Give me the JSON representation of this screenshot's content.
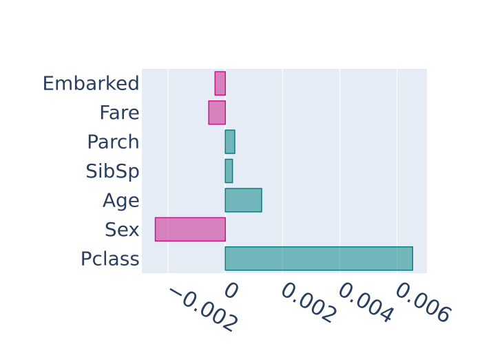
{
  "chart_data": {
    "type": "bar",
    "orientation": "horizontal",
    "categories": [
      "Pclass",
      "Sex",
      "Age",
      "SibSp",
      "Parch",
      "Fare",
      "Embarked"
    ],
    "values": [
      0.00655,
      -0.00245,
      0.00127,
      0.00025,
      0.00033,
      -0.00058,
      -0.00036
    ],
    "xlim": [
      -0.00292,
      0.00705
    ],
    "xticks": [
      -0.002,
      0,
      0.002,
      0.004,
      0.006
    ],
    "xtick_labels": [
      "−0.002",
      "0",
      "0.002",
      "0.004",
      "0.006"
    ],
    "title": "",
    "xlabel": "",
    "ylabel": "",
    "grid": true,
    "colors": {
      "positive_fill": "rgba(0,128,128,0.5)",
      "positive_line": "#008080",
      "negative_fill": "rgba(199,21,133,0.5)",
      "negative_line": "#c71585",
      "plot_bg": "#e5ecf6",
      "grid": "#ffffff",
      "text": "#2a3f5f"
    }
  }
}
